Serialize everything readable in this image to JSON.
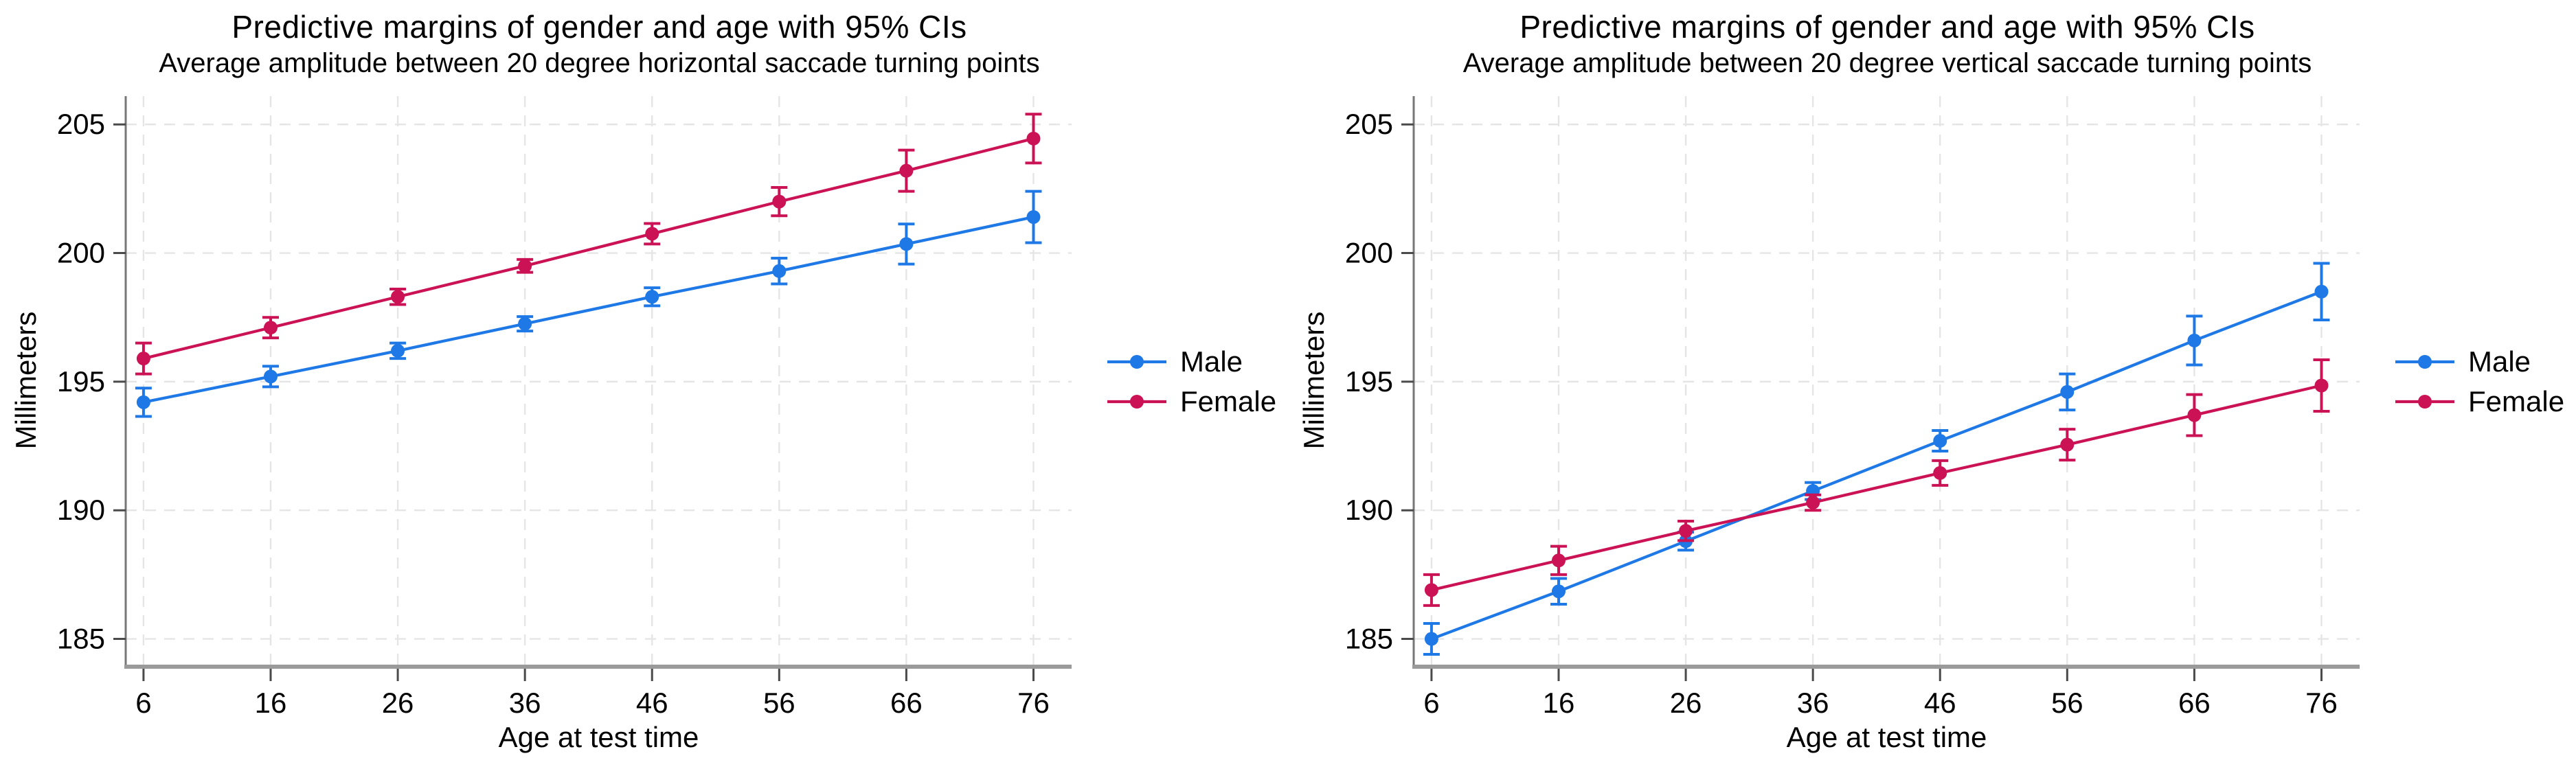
{
  "figure": {
    "background": "#ffffff",
    "grid_color": "#e5e5e5",
    "y_axis_color": "#777777",
    "x_axis_color": "#9a9a9a",
    "tick_color": "#4a4a4a",
    "text_color": "#000000"
  },
  "chart_data": [
    {
      "type": "line",
      "title": "Predictive margins of gender and age with 95% CIs",
      "subtitle": "Average amplitude between 20 degree horizontal saccade turning points",
      "xlabel": "Age at test time",
      "ylabel": "Millimeters",
      "x": [
        6,
        16,
        26,
        36,
        46,
        56,
        66,
        76
      ],
      "xticklabels": [
        "6",
        "16",
        "26",
        "36",
        "46",
        "56",
        "66",
        "76"
      ],
      "yticks": [
        185,
        190,
        195,
        200,
        205
      ],
      "yticklabels": [
        "185",
        "190",
        "195",
        "200",
        "205"
      ],
      "xlim": [
        4.6,
        79
      ],
      "ylim": [
        184.0,
        206.1
      ],
      "grid": true,
      "error_bars": "95% CI",
      "legend_position": "right",
      "series": [
        {
          "name": "Male",
          "color": "#1e78e6",
          "values": [
            194.2,
            195.2,
            196.2,
            197.25,
            198.3,
            199.3,
            200.35,
            201.4
          ],
          "ci_half": [
            0.55,
            0.4,
            0.3,
            0.28,
            0.35,
            0.5,
            0.78,
            1.0
          ]
        },
        {
          "name": "Female",
          "color": "#cb1254",
          "values": [
            195.9,
            197.1,
            198.3,
            199.5,
            200.75,
            202.0,
            203.2,
            204.45
          ],
          "ci_half": [
            0.6,
            0.4,
            0.3,
            0.25,
            0.4,
            0.55,
            0.8,
            0.95
          ]
        }
      ]
    },
    {
      "type": "line",
      "title": "Predictive margins of gender and age with 95% CIs",
      "subtitle": "Average amplitude between 20 degree vertical saccade turning points",
      "xlabel": "Age at test time",
      "ylabel": "Millimeters",
      "x": [
        6,
        16,
        26,
        36,
        46,
        56,
        66,
        76
      ],
      "xticklabels": [
        "6",
        "16",
        "26",
        "36",
        "46",
        "56",
        "66",
        "76"
      ],
      "yticks": [
        185,
        190,
        195,
        200,
        205
      ],
      "yticklabels": [
        "185",
        "190",
        "195",
        "200",
        "205"
      ],
      "xlim": [
        4.6,
        79
      ],
      "ylim": [
        184.0,
        206.1
      ],
      "grid": true,
      "error_bars": "95% CI",
      "legend_position": "right",
      "series": [
        {
          "name": "Male",
          "color": "#1e78e6",
          "values": [
            185.0,
            186.85,
            188.8,
            190.75,
            192.7,
            194.6,
            196.6,
            198.5
          ],
          "ci_half": [
            0.6,
            0.5,
            0.35,
            0.33,
            0.4,
            0.7,
            0.95,
            1.1
          ]
        },
        {
          "name": "Female",
          "color": "#cb1254",
          "values": [
            186.9,
            188.05,
            189.2,
            190.3,
            191.45,
            192.55,
            193.7,
            194.85
          ],
          "ci_half": [
            0.6,
            0.55,
            0.38,
            0.3,
            0.48,
            0.6,
            0.8,
            1.0
          ]
        }
      ]
    }
  ]
}
